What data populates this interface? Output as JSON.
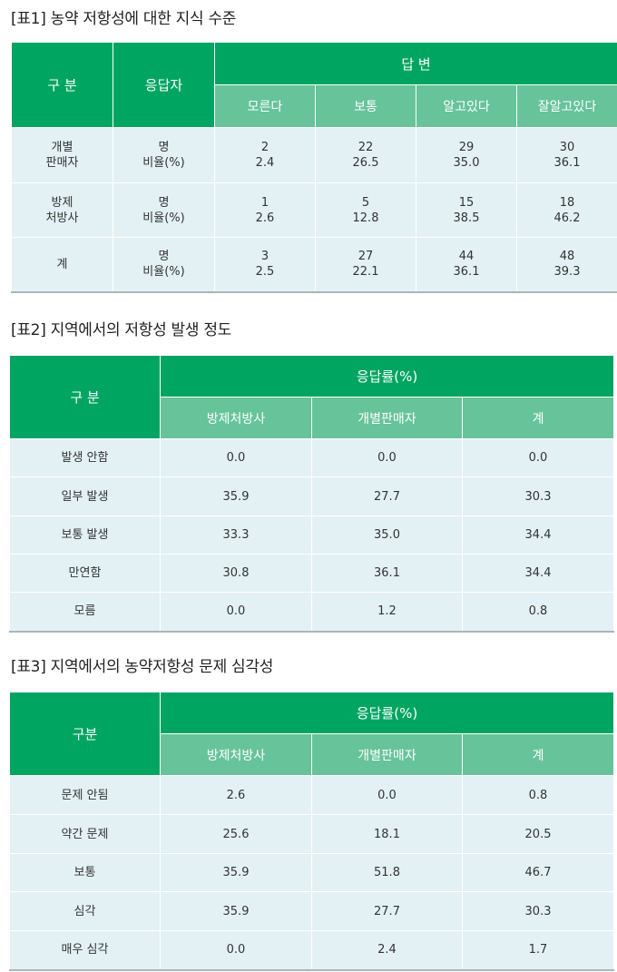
{
  "table1": {
    "title": "[표1] 농약 저항성에 대한 지식 수준",
    "header": {
      "category": "구 분",
      "respondent": "응답자",
      "answer": "답 변",
      "cols": [
        "모른다",
        "보통",
        "알고있다",
        "잘알고있다"
      ]
    },
    "rows": [
      {
        "cat1": "개별",
        "cat2": "판매자",
        "unit1": "명",
        "unit2": "비율(%)",
        "v": [
          [
            "2",
            "2.4"
          ],
          [
            "22",
            "26.5"
          ],
          [
            "29",
            "35.0"
          ],
          [
            "30",
            "36.1"
          ]
        ]
      },
      {
        "cat1": "방제",
        "cat2": "처방사",
        "unit1": "명",
        "unit2": "비율(%)",
        "v": [
          [
            "1",
            "2.6"
          ],
          [
            "5",
            "12.8"
          ],
          [
            "15",
            "38.5"
          ],
          [
            "18",
            "46.2"
          ]
        ]
      },
      {
        "cat1": "계",
        "cat2": "",
        "unit1": "명",
        "unit2": "비율(%)",
        "v": [
          [
            "3",
            "2.5"
          ],
          [
            "27",
            "22.1"
          ],
          [
            "44",
            "36.1"
          ],
          [
            "48",
            "39.3"
          ]
        ]
      }
    ]
  },
  "table2": {
    "title": "[표2] 지역에서의 저항성 발생 정도",
    "header": {
      "category": "구 분",
      "group": "응답률(%)",
      "cols": [
        "방제처방사",
        "개별판매자",
        "계"
      ]
    },
    "rows": [
      {
        "label": "발생 안함",
        "v": [
          "0.0",
          "0.0",
          "0.0"
        ]
      },
      {
        "label": "일부 발생",
        "v": [
          "35.9",
          "27.7",
          "30.3"
        ]
      },
      {
        "label": "보통 발생",
        "v": [
          "33.3",
          "35.0",
          "34.4"
        ]
      },
      {
        "label": "만연함",
        "v": [
          "30.8",
          "36.1",
          "34.4"
        ]
      },
      {
        "label": "모름",
        "v": [
          "0.0",
          "1.2",
          "0.8"
        ]
      }
    ]
  },
  "table3": {
    "title": "[표3] 지역에서의 농약저항성 문제 심각성",
    "header": {
      "category": "구분",
      "group": "응답률(%)",
      "cols": [
        "방제처방사",
        "개별판매자",
        "계"
      ]
    },
    "rows": [
      {
        "label": "문제 안됨",
        "v": [
          "2.6",
          "0.0",
          "0.8"
        ]
      },
      {
        "label": "약간 문제",
        "v": [
          "25.6",
          "18.1",
          "20.5"
        ]
      },
      {
        "label": "보통",
        "v": [
          "35.9",
          "51.8",
          "46.7"
        ]
      },
      {
        "label": "심각",
        "v": [
          "35.9",
          "27.7",
          "30.3"
        ]
      },
      {
        "label": "매우 심각",
        "v": [
          "0.0",
          "2.4",
          "1.7"
        ]
      }
    ]
  }
}
